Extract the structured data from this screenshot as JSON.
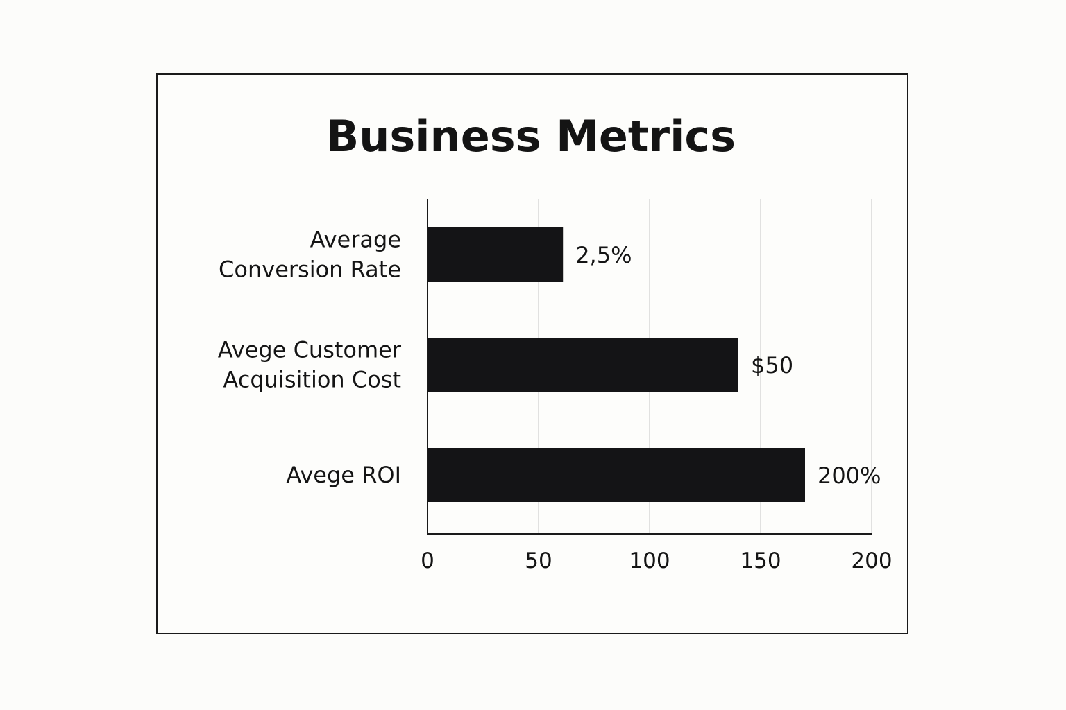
{
  "chart_data": {
    "type": "bar",
    "orientation": "horizontal",
    "title": "Business Metrics",
    "categories": [
      [
        "Average",
        "Conversion Rate"
      ],
      [
        "Avege Customer",
        "Acquisition Cost"
      ],
      [
        "Avege ROI"
      ]
    ],
    "values": [
      61,
      140,
      170
    ],
    "data_labels": [
      "2,5%",
      "$50",
      "200%"
    ],
    "xlim": [
      0,
      200
    ],
    "x_ticks": [
      0,
      50,
      100,
      150,
      200
    ],
    "x_tick_labels": [
      "0",
      "50",
      "100",
      "150",
      "200"
    ],
    "xlabel": "",
    "ylabel": "",
    "grid": true,
    "bar_color": "#141416",
    "grid_color": "#d8d8d8",
    "axis_color": "#1a1a1a"
  }
}
